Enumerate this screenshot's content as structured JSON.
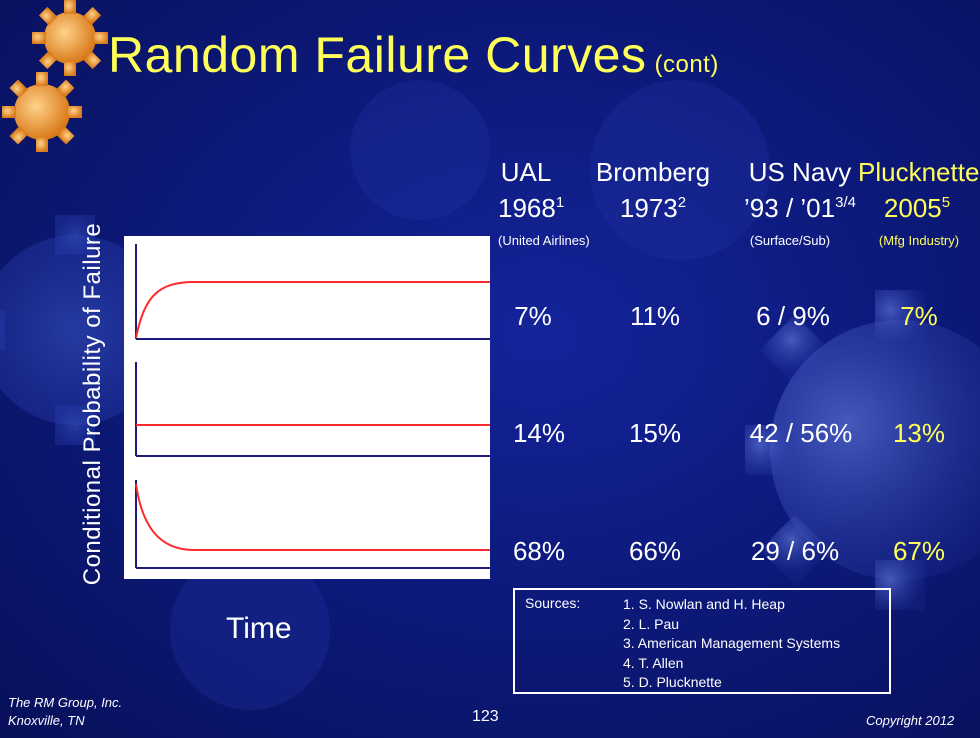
{
  "slide": {
    "title": "Random Failure Curves",
    "title_suffix": "(cont)",
    "columns": [
      {
        "name": "UAL",
        "year": "1968",
        "sup": "1",
        "note": "(United Airlines)"
      },
      {
        "name": "Bromberg",
        "year": "1973",
        "sup": "2",
        "note": ""
      },
      {
        "name": "US Navy",
        "year": "’93 / ’01",
        "sup": "3/4",
        "note": "(Surface/Sub)"
      },
      {
        "name": "Plucknette",
        "year": "2005",
        "sup": "5",
        "note": "(Mfg Industry)"
      }
    ],
    "rows": [
      [
        "7%",
        "11%",
        "6 / 9%",
        "7%"
      ],
      [
        "14%",
        "15%",
        "42 / 56%",
        "13%"
      ],
      [
        "68%",
        "66%",
        "29 / 6%",
        "67%"
      ]
    ],
    "sources": {
      "label": "Sources:",
      "items": [
        "1. S. Nowlan and H. Heap",
        "2. L. Pau",
        "3. American Management  Systems",
        "4. T. Allen",
        "5. D. Plucknette"
      ]
    },
    "footer": {
      "company": "The RM Group, Inc.",
      "location": "Knoxville, TN",
      "page": "123",
      "copyright": "Copyright 2012"
    }
  },
  "chart_data": {
    "type": "line",
    "xlabel": "Time",
    "ylabel": "Conditional  Probability  of  Failure",
    "panels": [
      "rising-then-constant",
      "constant",
      "decreasing-then-constant"
    ]
  },
  "colors": {
    "background": "#0d1a7c",
    "title": "#ffff5a",
    "curve": "#ff2a2a",
    "axis": "#1b1b7a",
    "highlight": "#ffff5a"
  },
  "icons": {
    "corner": "gear-icon",
    "background": "gear-icon"
  }
}
